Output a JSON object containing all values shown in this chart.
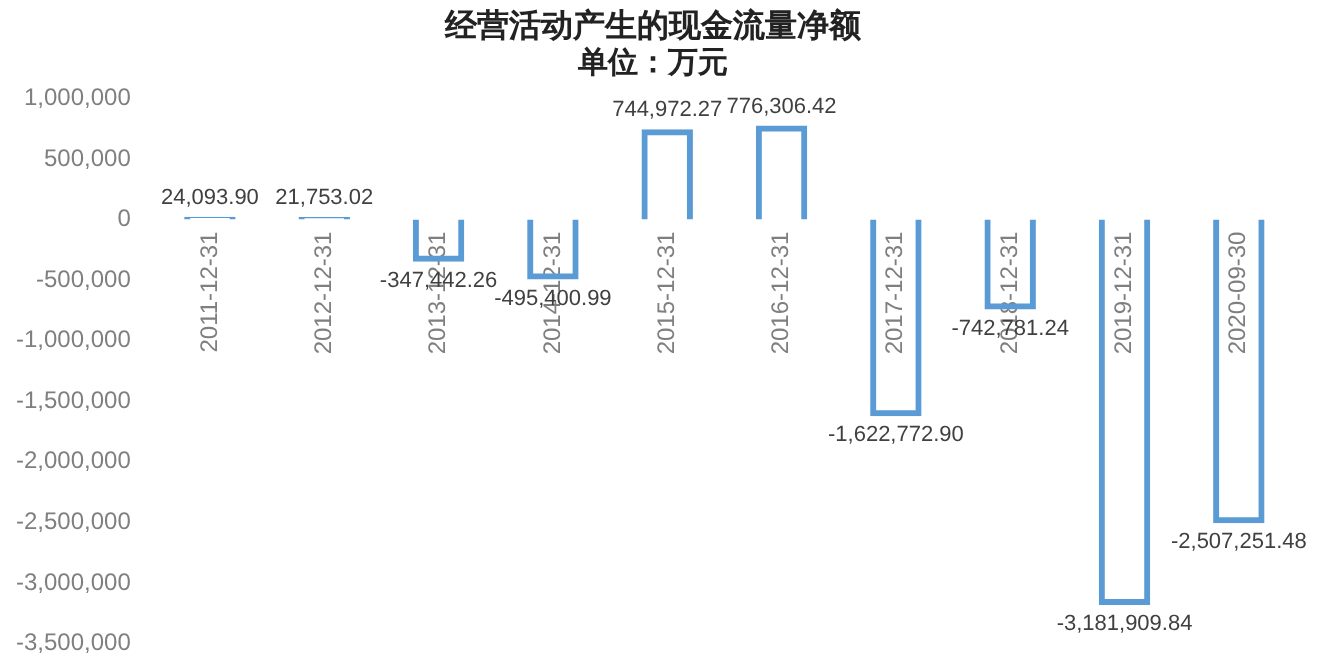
{
  "chart_data": {
    "type": "bar",
    "title": "经营活动产生的现金流量净额",
    "subtitle": "单位：万元",
    "categories": [
      "2011-12-31",
      "2012-12-31",
      "2013-12-31",
      "2014-12-31",
      "2015-12-31",
      "2016-12-31",
      "2017-12-31",
      "2018-12-31",
      "2019-12-31",
      "2020-09-30"
    ],
    "values": [
      24093.9,
      21753.02,
      -347442.26,
      -495400.99,
      744972.27,
      776306.42,
      -1622772.9,
      -742781.24,
      -3181909.84,
      -2507251.48
    ],
    "value_labels": [
      "24,093.90",
      "21,753.02",
      "-347,442.26",
      "-495,400.99",
      "744,972.27",
      "776,306.42",
      "-1,622,772.90",
      "-742,781.24",
      "-3,181,909.84",
      "-2,507,251.48"
    ],
    "color": "#5b9bd5",
    "ylim": [
      -3500000,
      1000000
    ],
    "yticks": [
      {
        "value": -3500000,
        "label": "-3,500,000"
      },
      {
        "value": -3000000,
        "label": "-3,000,000"
      },
      {
        "value": -2500000,
        "label": "-2,500,000"
      },
      {
        "value": -2000000,
        "label": "-2,000,000"
      },
      {
        "value": -1500000,
        "label": "-1,500,000"
      },
      {
        "value": -1000000,
        "label": "-1,000,000"
      },
      {
        "value": -500000,
        "label": "-500,000"
      },
      0,
      {
        "value": 500000,
        "label": "500,000"
      },
      {
        "value": 1000000,
        "label": "1,000,000"
      }
    ],
    "grid": false,
    "legend": false
  }
}
